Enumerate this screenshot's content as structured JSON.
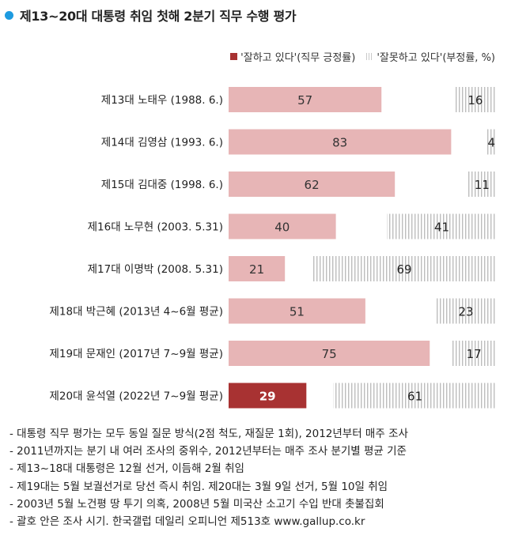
{
  "title": "제13~20대 대통령 취임 첫해 2분기 직무 수행 평가",
  "legend": {
    "positive": "'잘하고 있다'(직무 긍정률)",
    "negative": "'잘못하고 있다'(부정률, %)"
  },
  "colors": {
    "positive": "#e7b5b6",
    "highlight": "#a83232",
    "hatch": "#c9c9c9",
    "title_dot": "#1e9be0"
  },
  "chart_data": {
    "type": "bar",
    "orientation": "horizontal-stacked",
    "categories": [
      "제13대 노태우 (1988. 6.)",
      "제14대 김영삼 (1993. 6.)",
      "제15대 김대중 (1998. 6.)",
      "제16대 노무현 (2003. 5.31)",
      "제17대 이명박 (2008. 5.31)",
      "제18대 박근혜 (2013년 4~6월 평균)",
      "제19대 문재인 (2017년 7~9월 평균)",
      "제20대 윤석열 (2022년 7~9월 평균)"
    ],
    "series": [
      {
        "name": "'잘하고 있다'(직무 긍정률)",
        "values": [
          57,
          83,
          62,
          40,
          21,
          51,
          75,
          29
        ]
      },
      {
        "name": "'잘못하고 있다'(부정률, %)",
        "values": [
          16,
          4,
          11,
          41,
          69,
          23,
          17,
          61
        ]
      }
    ],
    "highlight_index": 7,
    "xlim": [
      0,
      100
    ]
  },
  "notes": [
    "- 대통령 직무 평가는 모두 동일 질문 방식(2점 척도, 재질문 1회), 2012년부터 매주 조사",
    "- 2011년까지는 분기 내 여러 조사의 중위수, 2012년부터는 매주 조사 분기별 평균 기준",
    "- 제13~18대 대통령은 12월 선거, 이듬해 2월 취임",
    "- 제19대는 5월 보궐선거로 당선 즉시 취임. 제20대는 3월 9일 선거, 5월 10일 취임",
    "- 2003년 5월 노건평 땅 투기 의혹, 2008년 5월 미국산 소고기 수입 반대 촛불집회",
    "- 괄호 안은 조사 시기. 한국갤럽 데일리 오피니언 제513호 www.gallup.co.kr"
  ]
}
